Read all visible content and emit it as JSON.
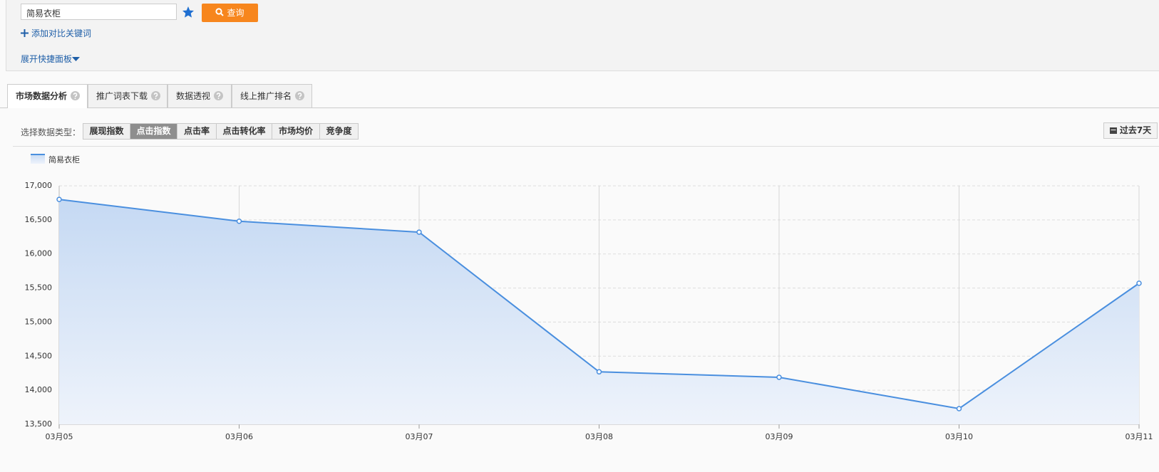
{
  "search": {
    "input": "简易衣柜",
    "button": "查询",
    "add_compare": "添加对比关键词",
    "expand_panel": "展开快捷面板"
  },
  "tabs": [
    "市场数据分析",
    "推广词表下载",
    "数据透视",
    "线上推广排名"
  ],
  "data_type": {
    "label": "选择数据类型：",
    "options": [
      "展现指数",
      "点击指数",
      "点击率",
      "点击转化率",
      "市场均价",
      "竞争度"
    ],
    "selected": 1
  },
  "range_button": "过去7天",
  "chart_data": {
    "type": "line",
    "area": true,
    "grid": true,
    "categories": [
      "03月05",
      "03月06",
      "03月07",
      "03月08",
      "03月09",
      "03月10",
      "03月11"
    ],
    "series": [
      {
        "name": "简易衣柜",
        "color": "#4a8fdf",
        "values": [
          16800,
          16480,
          16320,
          14270,
          14190,
          13730,
          15570
        ]
      }
    ],
    "ylim": [
      13500,
      17000
    ],
    "yticks": [
      {
        "value": 13500,
        "label": "13,500"
      },
      {
        "value": 14000,
        "label": "14,000"
      },
      {
        "value": 14500,
        "label": "14,500"
      },
      {
        "value": 15000,
        "label": "15,000"
      },
      {
        "value": 15500,
        "label": "15,500"
      },
      {
        "value": 16000,
        "label": "16,000"
      },
      {
        "value": 16500,
        "label": "16,500"
      },
      {
        "value": 17000,
        "label": "17,000"
      }
    ]
  }
}
